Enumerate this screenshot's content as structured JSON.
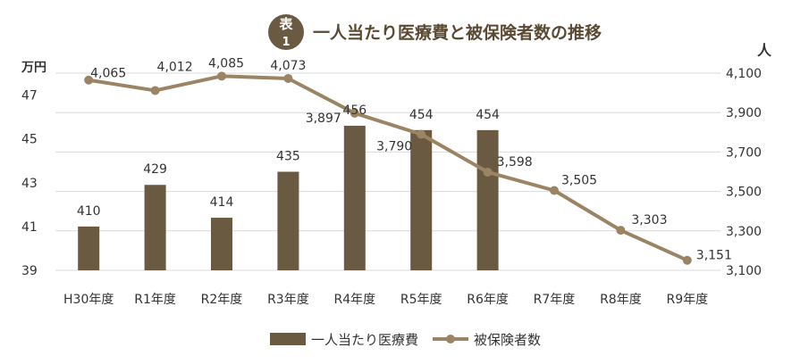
{
  "badge": {
    "line1": "表",
    "line2": "1"
  },
  "title": "一人当たり医療費と被保険者数の推移",
  "colors": {
    "bar": "#6b5a42",
    "line": "#9a8463",
    "badge": "#6b5a42",
    "grid": "#d9d9d9",
    "text": "#333333"
  },
  "chart_data": {
    "type": "bar+line",
    "categories": [
      "H30年度",
      "R1年度",
      "R2年度",
      "R3年度",
      "R4年度",
      "R5年度",
      "R6年度",
      "R7年度",
      "R8年度",
      "R9年度"
    ],
    "left_axis": {
      "unit": "万円",
      "ylim": [
        39,
        48
      ],
      "ticks": [
        "39",
        "41",
        "43",
        "45",
        "47"
      ]
    },
    "right_axis": {
      "unit": "人",
      "ylim": [
        3100,
        4100
      ],
      "ticks": [
        "3,100",
        "3,300",
        "3,500",
        "3,700",
        "3,900",
        "4,100"
      ]
    },
    "grid": true,
    "legend_position": "bottom",
    "series": [
      {
        "name": "一人当たり医療費",
        "type": "bar",
        "axis": "left",
        "values": [
          41.0,
          42.9,
          41.4,
          43.5,
          45.6,
          45.4,
          45.4,
          null,
          null,
          null
        ],
        "labels": [
          "410",
          "429",
          "414",
          "435",
          "456",
          "454",
          "454",
          "",
          "",
          ""
        ]
      },
      {
        "name": "被保険者数",
        "type": "line",
        "axis": "right",
        "values": [
          4065,
          4012,
          4085,
          4073,
          3897,
          3790,
          3598,
          3505,
          3303,
          3151
        ],
        "labels": [
          "4,065",
          "4,012",
          "4,085",
          "4,073",
          "3,897",
          "3,790",
          "3,598",
          "3,505",
          "3,303",
          "3,151"
        ]
      }
    ]
  }
}
